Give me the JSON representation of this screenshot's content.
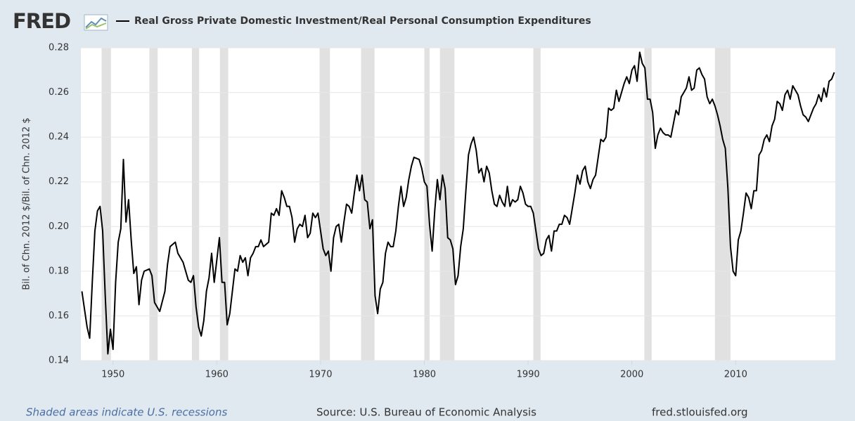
{
  "logo": "FRED",
  "footer": {
    "note": "Shaded areas indicate U.S. recessions",
    "source": "Source: U.S. Bureau of Economic Analysis",
    "url": "fred.stlouisfed.org"
  },
  "chart_data": {
    "type": "line",
    "y_label": "Bil. of Chn. 2012 $/Bil. of Chn. 2012 $",
    "xlim": [
      1946.9,
      2019.6
    ],
    "xticks": [
      1950,
      1960,
      1970,
      1980,
      1990,
      2000,
      2010
    ],
    "ylim": [
      0.14,
      0.28
    ],
    "yticks": [
      0.14,
      0.16,
      0.18,
      {
        "value": 0.2,
        "label": "0.20"
      },
      0.22,
      0.24,
      0.26,
      0.28
    ],
    "grid": true,
    "recession_color": "#e1e1e1",
    "recessions": [
      [
        1948.9,
        1949.8
      ],
      [
        1953.5,
        1954.3
      ],
      [
        1957.6,
        1958.3
      ],
      [
        1960.3,
        1961.1
      ],
      [
        1969.9,
        1970.9
      ],
      [
        1973.9,
        1975.2
      ],
      [
        1980.0,
        1980.5
      ],
      [
        1981.5,
        1982.9
      ],
      [
        1990.5,
        1991.2
      ],
      [
        2001.2,
        2001.9
      ],
      [
        2008.0,
        2009.5
      ]
    ],
    "x": [
      1947,
      1947.5,
      1947.75,
      1948,
      1948.25,
      1948.5,
      1948.75,
      1949,
      1949.25,
      1949.5,
      1949.75,
      1950,
      1950.25,
      1950.5,
      1950.75,
      1951,
      1951.25,
      1951.5,
      1951.75,
      1952,
      1952.25,
      1952.5,
      1952.75,
      1953,
      1953.5,
      1953.75,
      1954,
      1954.5,
      1955,
      1955.25,
      1955.5,
      1956,
      1956.25,
      1956.75,
      1957.25,
      1957.5,
      1957.75,
      1958,
      1958.25,
      1958.5,
      1958.75,
      1959,
      1959.25,
      1959.5,
      1959.75,
      1960,
      1960.25,
      1960.5,
      1960.75,
      1961,
      1961.25,
      1961.5,
      1961.75,
      1962,
      1962.25,
      1962.5,
      1962.75,
      1963,
      1963.25,
      1963.5,
      1963.75,
      1964,
      1964.25,
      1964.5,
      1965,
      1965.25,
      1965.5,
      1965.75,
      1966,
      1966.25,
      1966.5,
      1966.75,
      1967,
      1967.25,
      1967.5,
      1967.75,
      1968,
      1968.25,
      1968.5,
      1968.75,
      1969,
      1969.25,
      1969.5,
      1969.75,
      1970,
      1970.25,
      1970.5,
      1970.75,
      1971,
      1971.25,
      1971.5,
      1971.75,
      1972,
      1972.25,
      1972.5,
      1972.75,
      1973,
      1973.25,
      1973.5,
      1973.75,
      1974,
      1974.25,
      1974.5,
      1974.75,
      1975,
      1975.25,
      1975.5,
      1975.75,
      1976,
      1976.25,
      1976.5,
      1976.75,
      1977,
      1977.25,
      1977.5,
      1977.75,
      1978,
      1978.25,
      1978.5,
      1978.75,
      1979,
      1979.5,
      1979.75,
      1980,
      1980.25,
      1980.5,
      1980.75,
      1981,
      1981.25,
      1981.5,
      1981.75,
      1982,
      1982.25,
      1982.5,
      1982.75,
      1983,
      1983.25,
      1983.5,
      1983.75,
      1984,
      1984.25,
      1984.5,
      1984.75,
      1985,
      1985.25,
      1985.5,
      1985.75,
      1986,
      1986.25,
      1986.5,
      1986.75,
      1987,
      1987.25,
      1987.5,
      1987.75,
      1988,
      1988.25,
      1988.5,
      1988.75,
      1989,
      1989.25,
      1989.5,
      1989.75,
      1990,
      1990.25,
      1990.5,
      1990.75,
      1991,
      1991.25,
      1991.5,
      1991.75,
      1992,
      1992.25,
      1992.5,
      1992.75,
      1993,
      1993.25,
      1993.5,
      1993.75,
      1994,
      1994.25,
      1994.5,
      1994.75,
      1995,
      1995.25,
      1995.5,
      1995.75,
      1996,
      1996.25,
      1996.5,
      1996.75,
      1997,
      1997.25,
      1997.5,
      1997.75,
      1998,
      1998.25,
      1998.5,
      1998.75,
      1999,
      1999.25,
      1999.5,
      1999.75,
      2000,
      2000.25,
      2000.5,
      2000.75,
      2001,
      2001.25,
      2001.5,
      2001.75,
      2002,
      2002.25,
      2002.5,
      2002.75,
      2003,
      2003.25,
      2003.5,
      2003.75,
      2004,
      2004.25,
      2004.5,
      2004.75,
      2005,
      2005.25,
      2005.5,
      2005.75,
      2006,
      2006.25,
      2006.5,
      2006.75,
      2007,
      2007.25,
      2007.5,
      2007.75,
      2008,
      2008.25,
      2008.5,
      2008.75,
      2009,
      2009.25,
      2009.5,
      2009.75,
      2010,
      2010.25,
      2010.5,
      2010.75,
      2011,
      2011.25,
      2011.5,
      2011.75,
      2012,
      2012.25,
      2012.5,
      2012.75,
      2013,
      2013.25,
      2013.5,
      2013.75,
      2014,
      2014.25,
      2014.5,
      2014.75,
      2015,
      2015.25,
      2015.5,
      2015.75,
      2016,
      2016.25,
      2016.5,
      2016.75,
      2017,
      2017.25,
      2017.5,
      2017.75,
      2018,
      2018.25,
      2018.5,
      2018.75,
      2019,
      2019.25,
      2019.5
    ],
    "series": [
      {
        "name": "Real Gross Private Domestic Investment/Real Personal Consumption Expenditures",
        "color": "#000000",
        "values": [
          0.171,
          0.155,
          0.15,
          0.175,
          0.198,
          0.207,
          0.209,
          0.198,
          0.169,
          0.143,
          0.154,
          0.145,
          0.175,
          0.193,
          0.199,
          0.23,
          0.202,
          0.212,
          0.194,
          0.179,
          0.182,
          0.165,
          0.176,
          0.18,
          0.181,
          0.178,
          0.166,
          0.162,
          0.171,
          0.183,
          0.191,
          0.193,
          0.188,
          0.184,
          0.176,
          0.175,
          0.178,
          0.164,
          0.155,
          0.151,
          0.158,
          0.171,
          0.177,
          0.188,
          0.175,
          0.185,
          0.195,
          0.175,
          0.175,
          0.156,
          0.161,
          0.171,
          0.181,
          0.18,
          0.187,
          0.184,
          0.186,
          0.178,
          0.186,
          0.188,
          0.191,
          0.191,
          0.194,
          0.191,
          0.193,
          0.206,
          0.205,
          0.208,
          0.205,
          0.216,
          0.213,
          0.209,
          0.209,
          0.204,
          0.193,
          0.199,
          0.201,
          0.2,
          0.205,
          0.195,
          0.197,
          0.206,
          0.204,
          0.206,
          0.198,
          0.19,
          0.187,
          0.189,
          0.18,
          0.195,
          0.2,
          0.201,
          0.193,
          0.202,
          0.21,
          0.209,
          0.206,
          0.215,
          0.223,
          0.216,
          0.223,
          0.212,
          0.211,
          0.199,
          0.203,
          0.169,
          0.161,
          0.172,
          0.175,
          0.188,
          0.193,
          0.191,
          0.191,
          0.198,
          0.209,
          0.218,
          0.209,
          0.213,
          0.221,
          0.227,
          0.231,
          0.23,
          0.226,
          0.22,
          0.218,
          0.201,
          0.189,
          0.207,
          0.221,
          0.212,
          0.223,
          0.217,
          0.195,
          0.194,
          0.19,
          0.174,
          0.178,
          0.191,
          0.199,
          0.216,
          0.232,
          0.237,
          0.24,
          0.234,
          0.224,
          0.226,
          0.22,
          0.227,
          0.224,
          0.216,
          0.21,
          0.209,
          0.214,
          0.211,
          0.209,
          0.218,
          0.209,
          0.212,
          0.211,
          0.212,
          0.218,
          0.215,
          0.21,
          0.209,
          0.209,
          0.206,
          0.198,
          0.19,
          0.187,
          0.188,
          0.194,
          0.196,
          0.189,
          0.198,
          0.198,
          0.201,
          0.201,
          0.205,
          0.204,
          0.201,
          0.208,
          0.215,
          0.223,
          0.219,
          0.225,
          0.227,
          0.22,
          0.217,
          0.221,
          0.223,
          0.231,
          0.239,
          0.238,
          0.24,
          0.253,
          0.252,
          0.253,
          0.261,
          0.256,
          0.26,
          0.264,
          0.267,
          0.264,
          0.27,
          0.272,
          0.265,
          0.278,
          0.273,
          0.271,
          0.257,
          0.257,
          0.251,
          0.235,
          0.241,
          0.244,
          0.242,
          0.241,
          0.241,
          0.24,
          0.246,
          0.252,
          0.25,
          0.258,
          0.26,
          0.262,
          0.267,
          0.261,
          0.262,
          0.27,
          0.271,
          0.268,
          0.266,
          0.258,
          0.255,
          0.257,
          0.254,
          0.25,
          0.245,
          0.239,
          0.235,
          0.217,
          0.191,
          0.18,
          0.178,
          0.194,
          0.198,
          0.206,
          0.215,
          0.213,
          0.208,
          0.216,
          0.216,
          0.232,
          0.234,
          0.239,
          0.241,
          0.238,
          0.245,
          0.248,
          0.256,
          0.255,
          0.252,
          0.259,
          0.261,
          0.257,
          0.263,
          0.261,
          0.259,
          0.254,
          0.25,
          0.249,
          0.247,
          0.25,
          0.253,
          0.255,
          0.259,
          0.256,
          0.262,
          0.258,
          0.265,
          0.266,
          0.269
        ]
      }
    ]
  }
}
